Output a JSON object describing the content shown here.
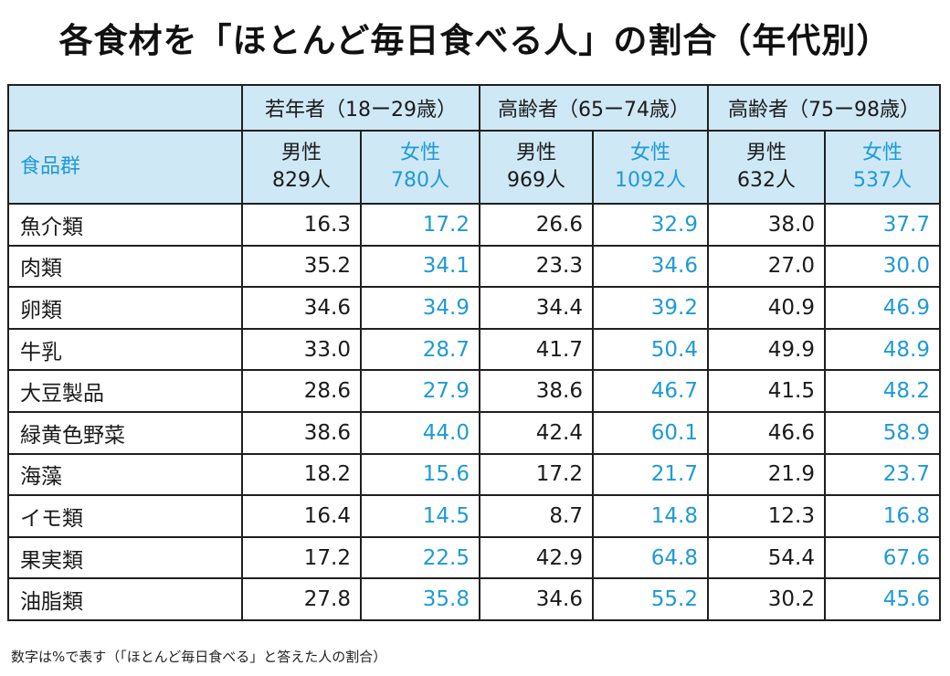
{
  "title": "各食材を「ほとんど毎日食べる人」の割合（年代別）",
  "note": "数字は%で表す（「ほとんど毎日食べる」と答えた人の割合）",
  "colors": {
    "header_bg": "#cfe8f6",
    "female_text": "#1e9ad6",
    "border": "#1f1f1f"
  },
  "table": {
    "food_header": "食品群",
    "groups": [
      "若年者（18ー29歳）",
      "高齢者（65ー74歳）",
      "高齢者（75ー98歳）"
    ],
    "subheaders": [
      {
        "sex": "男性",
        "n": "829人"
      },
      {
        "sex": "女性",
        "n": "780人"
      },
      {
        "sex": "男性",
        "n": "969人"
      },
      {
        "sex": "女性",
        "n": "1092人"
      },
      {
        "sex": "男性",
        "n": "632人"
      },
      {
        "sex": "女性",
        "n": "537人"
      }
    ],
    "rows": [
      {
        "food": "魚介類",
        "values": [
          "16.3",
          "17.2",
          "26.6",
          "32.9",
          "38.0",
          "37.7"
        ]
      },
      {
        "food": "肉類",
        "values": [
          "35.2",
          "34.1",
          "23.3",
          "34.6",
          "27.0",
          "30.0"
        ]
      },
      {
        "food": "卵類",
        "values": [
          "34.6",
          "34.9",
          "34.4",
          "39.2",
          "40.9",
          "46.9"
        ]
      },
      {
        "food": "牛乳",
        "values": [
          "33.0",
          "28.7",
          "41.7",
          "50.4",
          "49.9",
          "48.9"
        ]
      },
      {
        "food": "大豆製品",
        "values": [
          "28.6",
          "27.9",
          "38.6",
          "46.7",
          "41.5",
          "48.2"
        ]
      },
      {
        "food": "緑黄色野菜",
        "values": [
          "38.6",
          "44.0",
          "42.4",
          "60.1",
          "46.6",
          "58.9"
        ]
      },
      {
        "food": "海藻",
        "values": [
          "18.2",
          "15.6",
          "17.2",
          "21.7",
          "21.9",
          "23.7"
        ]
      },
      {
        "food": "イモ類",
        "values": [
          "16.4",
          "14.5",
          "8.7",
          "14.8",
          "12.3",
          "16.8"
        ]
      },
      {
        "food": "果実類",
        "values": [
          "17.2",
          "22.5",
          "42.9",
          "64.8",
          "54.4",
          "67.6"
        ]
      },
      {
        "food": "油脂類",
        "values": [
          "27.8",
          "35.8",
          "34.6",
          "55.2",
          "30.2",
          "45.6"
        ]
      }
    ]
  },
  "chart_data": {
    "type": "table",
    "title": "各食材を「ほとんど毎日食べる人」の割合（年代別）",
    "categories": [
      "魚介類",
      "肉類",
      "卵類",
      "牛乳",
      "大豆製品",
      "緑黄色野菜",
      "海藻",
      "イモ類",
      "果実類",
      "油脂類"
    ],
    "series": [
      {
        "name": "若年者（18ー29歳） 男性 829人",
        "values": [
          16.3,
          35.2,
          34.6,
          33.0,
          28.6,
          38.6,
          18.2,
          16.4,
          17.2,
          27.8
        ]
      },
      {
        "name": "若年者（18ー29歳） 女性 780人",
        "values": [
          17.2,
          34.1,
          34.9,
          28.7,
          27.9,
          44.0,
          15.6,
          14.5,
          22.5,
          35.8
        ]
      },
      {
        "name": "高齢者（65ー74歳） 男性 969人",
        "values": [
          26.6,
          23.3,
          34.4,
          41.7,
          38.6,
          42.4,
          17.2,
          8.7,
          42.9,
          34.6
        ]
      },
      {
        "name": "高齢者（65ー74歳） 女性 1092人",
        "values": [
          32.9,
          34.6,
          39.2,
          50.4,
          46.7,
          60.1,
          21.7,
          14.8,
          64.8,
          55.2
        ]
      },
      {
        "name": "高齢者（75ー98歳） 男性 632人",
        "values": [
          38.0,
          27.0,
          40.9,
          49.9,
          41.5,
          46.6,
          21.9,
          12.3,
          54.4,
          30.2
        ]
      },
      {
        "name": "高齢者（75ー98歳） 女性 537人",
        "values": [
          37.7,
          30.0,
          46.9,
          48.9,
          48.2,
          58.9,
          23.7,
          16.8,
          67.6,
          45.6
        ]
      }
    ]
  }
}
